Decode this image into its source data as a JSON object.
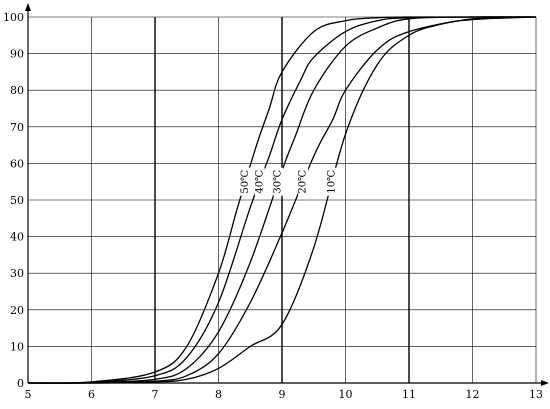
{
  "chart_data": {
    "type": "line",
    "title": "",
    "xlabel": "",
    "ylabel": "",
    "xlim": [
      5,
      13
    ],
    "ylim": [
      0,
      100
    ],
    "x_ticks": [
      5,
      6,
      7,
      8,
      9,
      10,
      11,
      12,
      13
    ],
    "y_ticks": [
      0,
      10,
      20,
      30,
      40,
      50,
      60,
      70,
      80,
      90,
      100
    ],
    "x_major_lines": [
      7,
      9,
      11
    ],
    "grid": true,
    "series": [
      {
        "name": "50℃",
        "x": [
          5,
          6,
          7,
          7.5,
          8,
          8.3,
          8.6,
          8.8,
          9,
          9.5,
          10,
          10.5,
          11,
          12,
          13
        ],
        "y": [
          0,
          0.3,
          3,
          10,
          30,
          48,
          65,
          75,
          85,
          96,
          99,
          99.8,
          100,
          100,
          100
        ]
      },
      {
        "name": "40℃",
        "x": [
          5,
          6,
          7,
          7.5,
          8,
          8.5,
          8.8,
          9,
          9.3,
          9.5,
          10,
          10.5,
          11,
          12,
          13
        ],
        "y": [
          0,
          0.2,
          2,
          7,
          22,
          48,
          62,
          72,
          83,
          89,
          96,
          99,
          99.8,
          100,
          100
        ]
      },
      {
        "name": "30℃",
        "x": [
          5,
          6,
          7,
          7.5,
          8,
          8.5,
          9,
          9.2,
          9.5,
          10,
          10.5,
          11,
          12,
          13
        ],
        "y": [
          0,
          0.1,
          1,
          4,
          14,
          33,
          58,
          67,
          80,
          92,
          97,
          99.5,
          100,
          100
        ]
      },
      {
        "name": "20℃",
        "x": [
          5,
          6,
          7,
          7.5,
          8,
          8.5,
          9,
          9.5,
          9.8,
          10,
          10.5,
          11,
          12,
          13
        ],
        "y": [
          0,
          0,
          0.5,
          2,
          8,
          22,
          41,
          62,
          72,
          80,
          91,
          96,
          99.5,
          100
        ]
      },
      {
        "name": "10℃",
        "x": [
          5,
          6,
          7,
          7.5,
          8,
          8.5,
          9,
          9.5,
          10,
          10.5,
          11,
          11.5,
          12,
          13
        ],
        "y": [
          0,
          0,
          0.3,
          1,
          4,
          10,
          16,
          37,
          68,
          87,
          95,
          98,
          99.3,
          100
        ]
      }
    ],
    "annotations": [
      {
        "text": "50℃",
        "series": 0,
        "y": 55
      },
      {
        "text": "40℃",
        "series": 1,
        "y": 55
      },
      {
        "text": "30℃",
        "series": 2,
        "y": 55
      },
      {
        "text": "20℃",
        "series": 3,
        "y": 55
      },
      {
        "text": "10℃",
        "series": 4,
        "y": 55
      }
    ]
  }
}
